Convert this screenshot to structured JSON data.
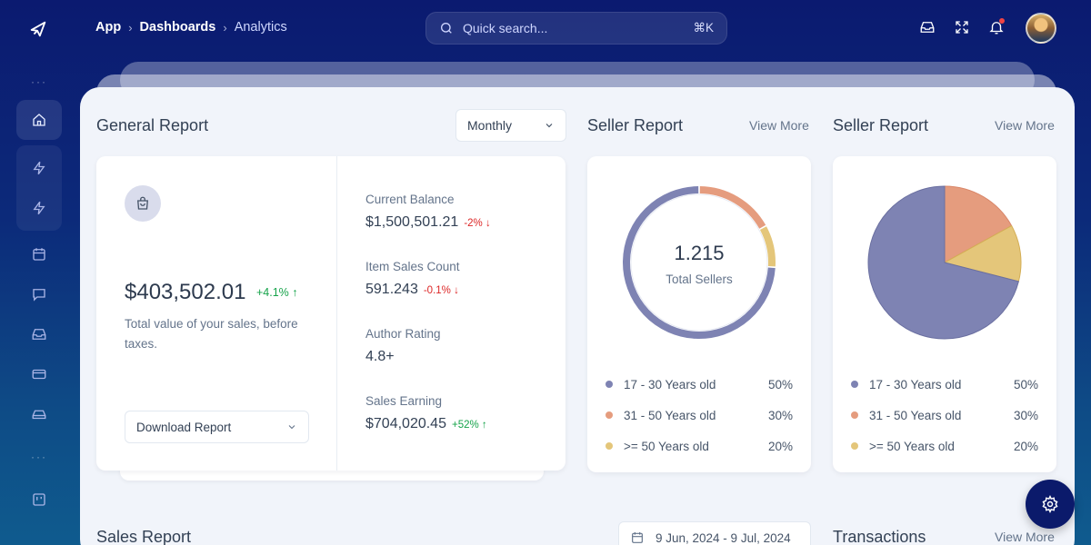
{
  "breadcrumb": [
    "App",
    "Dashboards",
    "Analytics"
  ],
  "search": {
    "placeholder": "Quick search...",
    "shortcut": "⌘K"
  },
  "topbar_icons": [
    "inbox-icon",
    "fullscreen-icon",
    "bell-icon"
  ],
  "sidebar": {
    "items": [
      "home-icon",
      "lightning-icon",
      "lightning-icon",
      "calendar-icon",
      "chat-icon",
      "inbox-icon",
      "credit-card-icon",
      "hard-drive-icon",
      "kanban-icon"
    ],
    "active": "home-icon"
  },
  "general_report": {
    "title": "General Report",
    "period": "Monthly",
    "total_amount": "$403,502.01",
    "total_change": "+4.1%",
    "description": "Total value of your sales, before taxes.",
    "download_label": "Download Report",
    "stats": [
      {
        "label": "Current Balance",
        "value": "$1,500,501.21",
        "change": "-2%",
        "direction": "down"
      },
      {
        "label": "Item Sales Count",
        "value": "591.243",
        "change": "-0.1%",
        "direction": "down"
      },
      {
        "label": "Author Rating",
        "value": "4.8+",
        "change": "",
        "direction": ""
      },
      {
        "label": "Sales Earning",
        "value": "$704,020.45",
        "change": "+52%",
        "direction": "up"
      }
    ]
  },
  "seller_report_donut": {
    "title": "Seller Report",
    "view_more": "View More",
    "center_value": "1.215",
    "center_label": "Total Sellers",
    "legend": [
      {
        "label": "17 - 30 Years old",
        "value": "50%"
      },
      {
        "label": "31 - 50 Years old",
        "value": "30%"
      },
      {
        "label": ">= 50 Years old",
        "value": "20%"
      }
    ]
  },
  "seller_report_pie": {
    "title": "Seller Report",
    "view_more": "View More",
    "legend": [
      {
        "label": "17 - 30 Years old",
        "value": "50%"
      },
      {
        "label": "31 - 50 Years old",
        "value": "30%"
      },
      {
        "label": ">= 50 Years old",
        "value": "20%"
      }
    ]
  },
  "sales_report": {
    "title": "Sales Report",
    "date_range": "9 Jun, 2024 - 9 Jul, 2024"
  },
  "transactions": {
    "title": "Transactions",
    "view_more": "View More"
  },
  "colors": {
    "slate_purple": "#7e83b3",
    "salmon": "#e59c7e",
    "sand": "#e4c67a",
    "brand_navy": "#0b1a6b"
  },
  "chart_data": [
    {
      "type": "pie",
      "title": "Seller Report",
      "categories": [
        "17 - 30 Years old",
        "31 - 50 Years old",
        ">= 50 Years old"
      ],
      "values": [
        50,
        30,
        20
      ]
    },
    {
      "type": "pie",
      "title": "Seller Report",
      "categories": [
        "17 - 30 Years old",
        "31 - 50 Years old",
        ">= 50 Years old"
      ],
      "values": [
        50,
        30,
        20
      ]
    }
  ]
}
